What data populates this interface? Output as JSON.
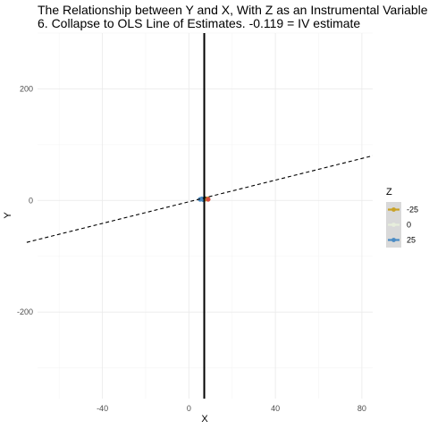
{
  "chart_data": {
    "type": "scatter",
    "title_lines": [
      "The Relationship between Y and X, With Z as an Instrumental Variable",
      "6. Collapse to OLS Line of Estimates. -0.119  = IV estimate"
    ],
    "xlabel": "X",
    "ylabel": "Y",
    "xlim": [
      -70,
      85
    ],
    "ylim": [
      -355,
      300
    ],
    "x_ticks": [
      -40,
      0,
      40,
      80
    ],
    "x_tick_labels": [
      "-40",
      "0",
      "40",
      "80"
    ],
    "y_ticks": [
      -200,
      0,
      200
    ],
    "y_tick_labels": [
      "-200",
      "0",
      "200"
    ],
    "grid": true,
    "legend": {
      "title": "Z",
      "position": "right",
      "entries": [
        {
          "label": "-25",
          "color": "#c9a227"
        },
        {
          "label": "0",
          "color": "#e7eedc"
        },
        {
          "label": "25",
          "color": "#4a8bc4"
        }
      ]
    },
    "vertical_line": {
      "x": 7.1,
      "color": "#000000"
    },
    "ols_line": {
      "x": [
        -75,
        90
      ],
      "y": [
        -75,
        85
      ],
      "style": "dashed",
      "color": "#000000"
    },
    "point_clusters": [
      {
        "z": "25",
        "color": "#4a8bc4",
        "points": [
          [
            5.2,
            2
          ],
          [
            6.0,
            3
          ],
          [
            6.6,
            1.5
          ],
          [
            7.4,
            3.5
          ]
        ]
      },
      {
        "z": "-25",
        "color": "#c9a227",
        "points": [
          [
            7.8,
            2.5
          ],
          [
            8.6,
            3
          ]
        ]
      },
      {
        "z": "mixed",
        "color": "#d94b3f",
        "points": [
          [
            8.9,
            2
          ]
        ]
      }
    ]
  }
}
